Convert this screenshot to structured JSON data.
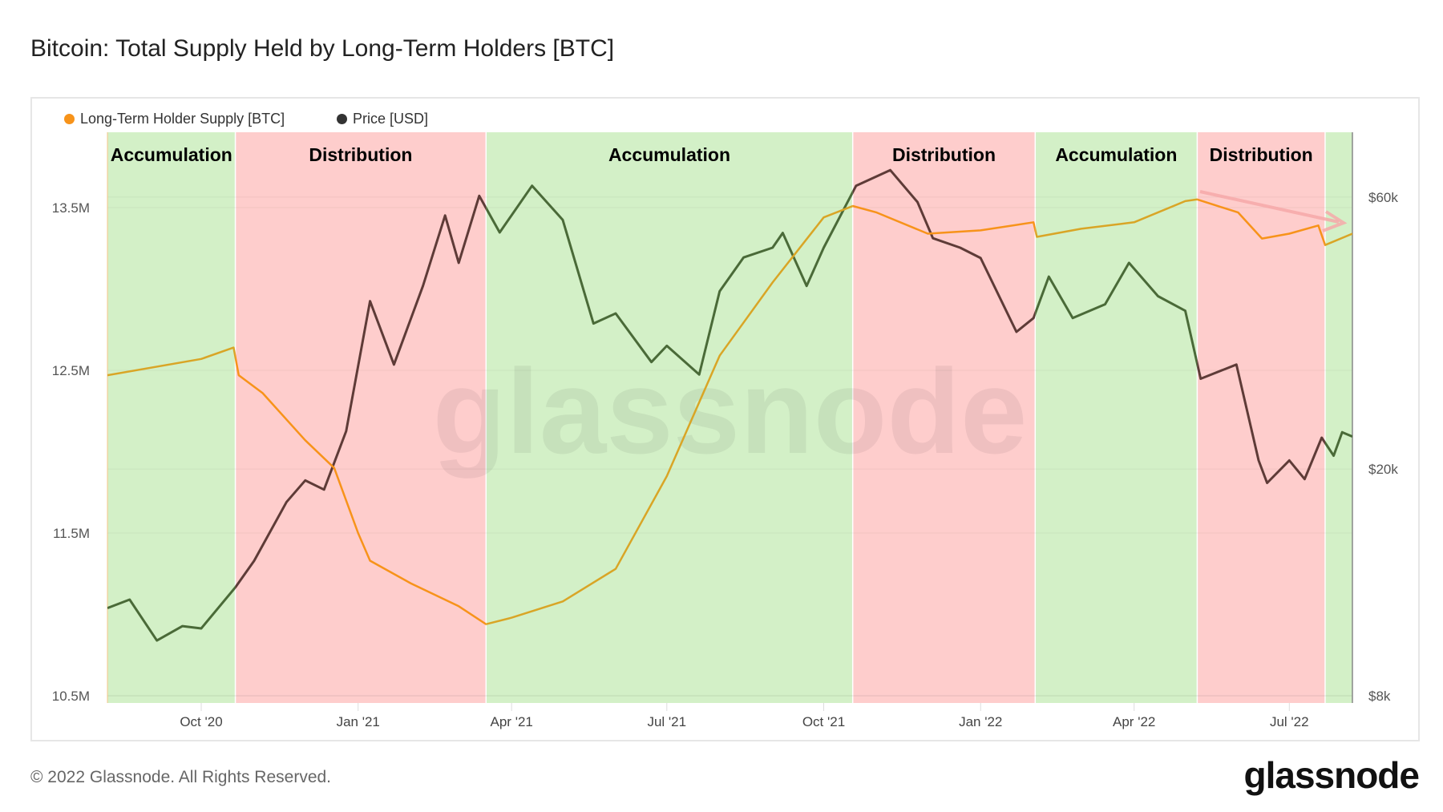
{
  "title": "Bitcoin: Total Supply Held by Long-Term Holders [BTC]",
  "footer": "© 2022 Glassnode. All Rights Reserved.",
  "logo": "glassnode",
  "watermark": "glassnode",
  "colors": {
    "accumulation_bg": "#d3f0c7",
    "distribution_bg": "#fecdcc",
    "supply_distribution": "#f7931a",
    "supply_accumulation": "#d9a526",
    "price_accumulation": "#4a6a38",
    "price_distribution": "#5e3b37",
    "arrow": "#f6a9a9"
  },
  "chart_data": {
    "type": "line",
    "title": "Bitcoin: Total Supply Held by Long-Term Holders [BTC]",
    "legend": {
      "placement": "top-left",
      "entries": [
        {
          "label": "Long-Term Holder Supply [BTC]",
          "color": "#f7931a"
        },
        {
          "label": "Price [USD]",
          "color": "#333333"
        }
      ]
    },
    "x_range": [
      "2020-08-07",
      "2022-08-07"
    ],
    "x_ticks": [
      {
        "date": "2020-10-01",
        "label": "Oct '20"
      },
      {
        "date": "2021-01-01",
        "label": "Jan '21"
      },
      {
        "date": "2021-04-01",
        "label": "Apr '21"
      },
      {
        "date": "2021-07-01",
        "label": "Jul '21"
      },
      {
        "date": "2021-10-01",
        "label": "Oct '21"
      },
      {
        "date": "2022-01-01",
        "label": "Jan '22"
      },
      {
        "date": "2022-04-01",
        "label": "Apr '22"
      },
      {
        "date": "2022-07-01",
        "label": "Jul '22"
      }
    ],
    "y_left": {
      "scale": "linear",
      "range": [
        10.5,
        13.96
      ],
      "unit": "M BTC",
      "ticks": [
        {
          "value": 10.5,
          "label": "10.5M"
        },
        {
          "value": 11.5,
          "label": "11.5M"
        },
        {
          "value": 12.5,
          "label": "12.5M"
        },
        {
          "value": 13.5,
          "label": "13.5M"
        }
      ]
    },
    "y_right": {
      "scale": "log",
      "range": [
        8000,
        100000
      ],
      "unit": "USD",
      "ticks": [
        {
          "value": 8000,
          "label": "$8k"
        },
        {
          "value": 20000,
          "label": "$20k"
        },
        {
          "value": 60000,
          "label": "$60k"
        }
      ]
    },
    "grid": true,
    "regions": [
      {
        "label": "Accumulation",
        "type": "accumulation",
        "start": "2020-08-07",
        "end": "2020-10-21"
      },
      {
        "label": "Distribution",
        "type": "distribution",
        "start": "2020-10-21",
        "end": "2021-03-17"
      },
      {
        "label": "Accumulation",
        "type": "accumulation",
        "start": "2021-03-17",
        "end": "2021-10-18"
      },
      {
        "label": "Distribution",
        "type": "distribution",
        "start": "2021-10-18",
        "end": "2022-02-02"
      },
      {
        "label": "Accumulation",
        "type": "accumulation",
        "start": "2022-02-02",
        "end": "2022-05-08"
      },
      {
        "label": "Distribution",
        "type": "distribution",
        "start": "2022-05-08",
        "end": "2022-07-22"
      },
      {
        "label": "",
        "type": "accumulation",
        "start": "2022-07-22",
        "end": "2022-08-07"
      }
    ],
    "series": [
      {
        "name": "Long-Term Holder Supply [BTC]",
        "axis": "left",
        "unit": "M BTC",
        "points": [
          [
            "2020-08-07",
            12.47
          ],
          [
            "2020-10-01",
            12.57
          ],
          [
            "2020-10-20",
            12.64
          ],
          [
            "2020-10-23",
            12.47
          ],
          [
            "2020-11-06",
            12.36
          ],
          [
            "2020-12-01",
            12.07
          ],
          [
            "2020-12-18",
            11.9
          ],
          [
            "2021-01-01",
            11.5
          ],
          [
            "2021-01-08",
            11.33
          ],
          [
            "2021-02-01",
            11.19
          ],
          [
            "2021-03-01",
            11.05
          ],
          [
            "2021-03-17",
            10.94
          ],
          [
            "2021-04-01",
            10.98
          ],
          [
            "2021-05-01",
            11.08
          ],
          [
            "2021-06-01",
            11.28
          ],
          [
            "2021-07-01",
            11.85
          ],
          [
            "2021-08-01",
            12.59
          ],
          [
            "2021-09-01",
            13.04
          ],
          [
            "2021-10-01",
            13.44
          ],
          [
            "2021-10-18",
            13.51
          ],
          [
            "2021-11-01",
            13.47
          ],
          [
            "2021-12-01",
            13.34
          ],
          [
            "2022-01-01",
            13.36
          ],
          [
            "2022-02-01",
            13.41
          ],
          [
            "2022-02-03",
            13.32
          ],
          [
            "2022-03-01",
            13.37
          ],
          [
            "2022-04-01",
            13.41
          ],
          [
            "2022-05-01",
            13.54
          ],
          [
            "2022-05-08",
            13.55
          ],
          [
            "2022-06-01",
            13.47
          ],
          [
            "2022-06-15",
            13.31
          ],
          [
            "2022-07-01",
            13.34
          ],
          [
            "2022-07-18",
            13.39
          ],
          [
            "2022-07-22",
            13.27
          ],
          [
            "2022-08-07",
            13.34
          ]
        ]
      },
      {
        "name": "Price [USD]",
        "axis": "right",
        "unit": "USD",
        "points": [
          [
            "2020-08-07",
            11400
          ],
          [
            "2020-08-20",
            11800
          ],
          [
            "2020-09-05",
            10000
          ],
          [
            "2020-09-20",
            10600
          ],
          [
            "2020-10-01",
            10500
          ],
          [
            "2020-10-21",
            12400
          ],
          [
            "2020-11-01",
            13800
          ],
          [
            "2020-11-20",
            17500
          ],
          [
            "2020-12-01",
            19100
          ],
          [
            "2020-12-12",
            18400
          ],
          [
            "2020-12-25",
            23300
          ],
          [
            "2021-01-08",
            39400
          ],
          [
            "2021-01-22",
            30500
          ],
          [
            "2021-02-08",
            41900
          ],
          [
            "2021-02-21",
            55700
          ],
          [
            "2021-03-01",
            46000
          ],
          [
            "2021-03-13",
            60300
          ],
          [
            "2021-03-25",
            52000
          ],
          [
            "2021-04-13",
            62800
          ],
          [
            "2021-05-01",
            54700
          ],
          [
            "2021-05-19",
            36000
          ],
          [
            "2021-06-01",
            37500
          ],
          [
            "2021-06-22",
            30800
          ],
          [
            "2021-07-01",
            32900
          ],
          [
            "2021-07-20",
            29300
          ],
          [
            "2021-08-01",
            41000
          ],
          [
            "2021-08-15",
            47000
          ],
          [
            "2021-09-01",
            48900
          ],
          [
            "2021-09-07",
            51900
          ],
          [
            "2021-09-21",
            41900
          ],
          [
            "2021-10-01",
            48900
          ],
          [
            "2021-10-20",
            62800
          ],
          [
            "2021-11-09",
            66900
          ],
          [
            "2021-11-25",
            58800
          ],
          [
            "2021-12-04",
            50800
          ],
          [
            "2021-12-20",
            48900
          ],
          [
            "2022-01-01",
            46900
          ],
          [
            "2022-01-22",
            34800
          ],
          [
            "2022-02-01",
            36800
          ],
          [
            "2022-02-10",
            43500
          ],
          [
            "2022-02-24",
            36800
          ],
          [
            "2022-03-15",
            38900
          ],
          [
            "2022-03-29",
            46000
          ],
          [
            "2022-04-15",
            40200
          ],
          [
            "2022-05-01",
            37900
          ],
          [
            "2022-05-10",
            28800
          ],
          [
            "2022-05-31",
            30500
          ],
          [
            "2022-06-13",
            20700
          ],
          [
            "2022-06-18",
            18900
          ],
          [
            "2022-07-01",
            20700
          ],
          [
            "2022-07-10",
            19200
          ],
          [
            "2022-07-20",
            22700
          ],
          [
            "2022-07-27",
            21100
          ],
          [
            "2022-08-01",
            23200
          ],
          [
            "2022-08-07",
            22800
          ]
        ]
      }
    ]
  }
}
